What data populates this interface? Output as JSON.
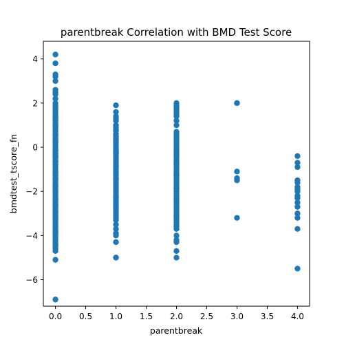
{
  "chart_data": {
    "type": "scatter",
    "title": "parentbreak Correlation with BMD Test Score",
    "xlabel": "parentbreak",
    "ylabel": "bmdtest_tscore_fn",
    "xlim": [
      -0.2,
      4.2
    ],
    "ylim": [
      -7.2,
      4.8
    ],
    "xticks": [
      "0.0",
      "0.5",
      "1.0",
      "1.5",
      "2.0",
      "2.5",
      "3.0",
      "3.5",
      "4.0"
    ],
    "yticks": [
      "4",
      "2",
      "0",
      "−2",
      "−4",
      "−6"
    ],
    "xtick_values": [
      0,
      0.5,
      1,
      1.5,
      2,
      2.5,
      3,
      3.5,
      4
    ],
    "ytick_values": [
      4,
      2,
      0,
      -2,
      -4,
      -6
    ],
    "grid": false,
    "marker_color": "#1f77b4",
    "series": [
      {
        "x": [
          0,
          0,
          0,
          0,
          0,
          0,
          0,
          0,
          0,
          0,
          0,
          0,
          0,
          0,
          0,
          0,
          0,
          0,
          0,
          0,
          0,
          0,
          0,
          0,
          0,
          0,
          0,
          0,
          0,
          0,
          0,
          0,
          0,
          0,
          0,
          0,
          0,
          0,
          0,
          0,
          0,
          0,
          0,
          0,
          0,
          0,
          0,
          0,
          0,
          0,
          0,
          0,
          0,
          0,
          0,
          0,
          0,
          0,
          0,
          0,
          0,
          0,
          0,
          0,
          0,
          0,
          0,
          0,
          0,
          0,
          0,
          0,
          0,
          0,
          0,
          0,
          0,
          0,
          0,
          0,
          0,
          0,
          0,
          0,
          0,
          0,
          0,
          0,
          0,
          0,
          0,
          0,
          0,
          0,
          0,
          0,
          0,
          0,
          1,
          1,
          1,
          1,
          1,
          1,
          1,
          1,
          1,
          1,
          1,
          1,
          1,
          1,
          1,
          1,
          1,
          1,
          1,
          1,
          1,
          1,
          1,
          1,
          1,
          1,
          1,
          1,
          1,
          1,
          1,
          1,
          1,
          1,
          1,
          1,
          1,
          1,
          1,
          1,
          1,
          1,
          1,
          1,
          1,
          1,
          1,
          1,
          1,
          1,
          1,
          1,
          1,
          1,
          1,
          1,
          1,
          1,
          1,
          1,
          1,
          1,
          2,
          2,
          2,
          2,
          2,
          2,
          2,
          2,
          2,
          2,
          2,
          2,
          2,
          2,
          2,
          2,
          2,
          2,
          2,
          2,
          2,
          2,
          2,
          2,
          2,
          2,
          2,
          2,
          2,
          2,
          2,
          2,
          2,
          2,
          2,
          2,
          2,
          2,
          2,
          2,
          2,
          2,
          2,
          2,
          2,
          2,
          2,
          2,
          2,
          2,
          2,
          2,
          2,
          2,
          2,
          2,
          2,
          2,
          2,
          2,
          2,
          2,
          2,
          2,
          2,
          3,
          3,
          3,
          3,
          3,
          3,
          4,
          4,
          4,
          4,
          4,
          4,
          4,
          4,
          4,
          4,
          4,
          4,
          4,
          4,
          4,
          4
        ],
        "y": [
          4.2,
          3.8,
          3.3,
          3.2,
          3.0,
          2.6,
          2.5,
          2.4,
          2.2,
          2.0,
          1.9,
          1.8,
          1.7,
          1.6,
          1.5,
          1.4,
          1.3,
          1.2,
          1.1,
          1.0,
          0.9,
          0.8,
          0.7,
          0.6,
          0.5,
          0.4,
          0.3,
          0.2,
          0.1,
          0.0,
          -0.1,
          -0.2,
          -0.3,
          -0.4,
          -0.5,
          -0.6,
          -0.7,
          -0.8,
          -0.9,
          -1.0,
          -1.1,
          -1.2,
          -1.3,
          -1.4,
          -1.5,
          -1.6,
          -1.7,
          -1.8,
          -1.9,
          -2.0,
          -2.1,
          -2.2,
          -2.3,
          -2.4,
          -2.5,
          -2.6,
          -2.7,
          -2.8,
          -2.9,
          -3.0,
          -3.1,
          -3.2,
          -3.3,
          -3.4,
          -3.5,
          -3.6,
          -3.7,
          -3.8,
          -3.9,
          -4.0,
          -4.1,
          -4.2,
          -4.3,
          -4.4,
          -4.5,
          -4.6,
          -4.7,
          -5.1,
          -6.9,
          0.25,
          -0.35,
          -0.65,
          -1.15,
          -1.45,
          -1.75,
          -2.05,
          -2.35,
          -2.65,
          -2.95,
          -3.25,
          -3.55,
          -3.85,
          0.55,
          0.95,
          1.35,
          -0.15,
          -0.45,
          -4.45,
          1.9,
          1.6,
          1.4,
          1.2,
          1.0,
          0.9,
          0.8,
          0.6,
          0.5,
          0.4,
          0.3,
          0.2,
          0.1,
          0.0,
          -0.1,
          -0.2,
          -0.3,
          -0.4,
          -0.5,
          -0.6,
          -0.7,
          -0.8,
          -0.9,
          -1.0,
          -1.1,
          -1.2,
          -1.3,
          -1.4,
          -1.5,
          -1.6,
          -1.7,
          -1.8,
          -1.9,
          -2.0,
          -2.1,
          -2.2,
          -2.3,
          -2.4,
          -2.5,
          -2.6,
          -2.7,
          -2.8,
          -2.9,
          -3.0,
          -3.1,
          -3.3,
          -3.5,
          -3.7,
          -3.9,
          -4.0,
          -4.3,
          -5.0,
          -5.0,
          0.75,
          0.35,
          -0.25,
          -0.85,
          -1.45,
          -2.25,
          -2.75,
          -3.2,
          1.3,
          2.0,
          1.9,
          1.8,
          1.6,
          1.4,
          1.2,
          1.0,
          0.7,
          0.6,
          0.5,
          0.3,
          0.2,
          0.1,
          0.0,
          -0.1,
          -0.2,
          -0.3,
          -0.4,
          -0.5,
          -0.6,
          -0.7,
          -0.8,
          -0.9,
          -1.0,
          -1.1,
          -1.2,
          -1.3,
          -1.4,
          -1.5,
          -1.6,
          -1.7,
          -1.8,
          -1.9,
          -2.0,
          -2.1,
          -2.2,
          -2.3,
          -2.4,
          -2.5,
          -2.6,
          -2.7,
          -2.8,
          -2.9,
          -3.0,
          -3.1,
          -3.2,
          -3.3,
          -3.4,
          -3.5,
          -3.6,
          -3.7,
          -4.0,
          -4.2,
          -4.3,
          -4.7,
          -5.0,
          1.7,
          1.5,
          0.4,
          -0.35,
          -0.75,
          -1.25,
          -1.85,
          -2.35,
          -3.15,
          2.0,
          2.0,
          -1.1,
          -1.4,
          -1.5,
          -3.2,
          -0.4,
          -0.7,
          -0.9,
          -1.5,
          -1.6,
          -1.8,
          -2.0,
          -2.2,
          -2.3,
          -2.5,
          -2.7,
          -3.0,
          -3.2,
          -3.7,
          -5.5,
          -1.9
        ]
      }
    ]
  }
}
